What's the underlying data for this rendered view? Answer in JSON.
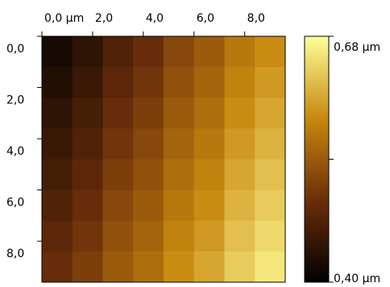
{
  "chart_data": {
    "type": "heatmap",
    "xlim": [
      0,
      9.6
    ],
    "ylim": [
      0,
      9.6
    ],
    "xticks": [
      {
        "value": 0,
        "label": "0,0 µm"
      },
      {
        "value": 2,
        "label": "2,0"
      },
      {
        "value": 4,
        "label": "4,0"
      },
      {
        "value": 6,
        "label": "6,0"
      },
      {
        "value": 8,
        "label": "8,0"
      }
    ],
    "yticks": [
      {
        "value": 0,
        "label": "0,0"
      },
      {
        "value": 2,
        "label": "2,0"
      },
      {
        "value": 4,
        "label": "4,0"
      },
      {
        "value": 6,
        "label": "6,0"
      },
      {
        "value": 8,
        "label": "8,0"
      }
    ],
    "z": [
      [
        0.42,
        0.44,
        0.47,
        0.49,
        0.52,
        0.54,
        0.57,
        0.59
      ],
      [
        0.43,
        0.45,
        0.48,
        0.5,
        0.53,
        0.55,
        0.58,
        0.6
      ],
      [
        0.44,
        0.46,
        0.49,
        0.51,
        0.54,
        0.56,
        0.59,
        0.61
      ],
      [
        0.45,
        0.47,
        0.5,
        0.52,
        0.55,
        0.57,
        0.6,
        0.62
      ],
      [
        0.46,
        0.48,
        0.51,
        0.53,
        0.56,
        0.58,
        0.61,
        0.63
      ],
      [
        0.47,
        0.49,
        0.52,
        0.54,
        0.57,
        0.59,
        0.62,
        0.64
      ],
      [
        0.48,
        0.5,
        0.53,
        0.55,
        0.58,
        0.6,
        0.63,
        0.65
      ],
      [
        0.49,
        0.51,
        0.54,
        0.56,
        0.59,
        0.61,
        0.64,
        0.66
      ]
    ],
    "colormap": [
      "#000000",
      "#6b2e0a",
      "#c8880e",
      "#ffff99"
    ],
    "zlim": [
      0.4,
      0.68
    ],
    "zticks": [
      {
        "value": 0.4,
        "label": "0,40 µm"
      },
      {
        "value": 0.68,
        "label": "0,68 µm"
      }
    ]
  }
}
